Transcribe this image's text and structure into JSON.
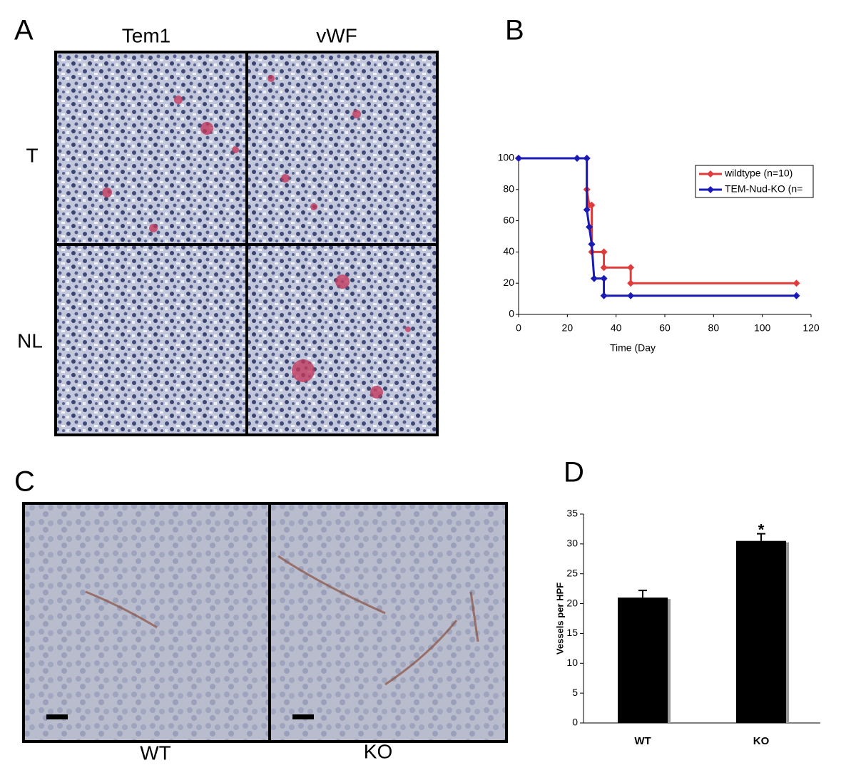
{
  "panels": {
    "a": "A",
    "b": "B",
    "c": "C",
    "d": "D",
    "a_columns": [
      "Tem1",
      "vWF"
    ],
    "a_rows": [
      "T",
      "NL"
    ],
    "c_columns": [
      "WT",
      "KO"
    ]
  },
  "chart_data": [
    {
      "type": "line",
      "xlabel": "Time (Day",
      "xlim": [
        0,
        120
      ],
      "xticks": [
        0,
        20,
        40,
        60,
        80,
        100,
        120
      ],
      "ylim": [
        0,
        100
      ],
      "yticks": [
        0,
        20,
        40,
        60,
        80,
        100
      ],
      "legend": "upper right",
      "series": [
        {
          "name": "wildtype (n=10)",
          "color": "#e03c3c",
          "x": [
            0,
            28,
            28,
            29,
            30,
            30,
            35,
            35,
            46,
            46,
            114
          ],
          "values": [
            100,
            100,
            80,
            70,
            70,
            40,
            40,
            30,
            30,
            20,
            20
          ]
        },
        {
          "name": "TEM-Nud-KO (n=",
          "color": "#1a1ab4",
          "x": [
            0,
            24,
            28,
            28,
            29,
            30,
            30,
            31,
            35,
            35,
            46,
            114
          ],
          "values": [
            100,
            100,
            100,
            67,
            56,
            45,
            45,
            23,
            23,
            12,
            12,
            12
          ]
        }
      ]
    },
    {
      "type": "bar",
      "ylabel": "Vessels per HPF",
      "categories": [
        "WT",
        "KO"
      ],
      "values": [
        21,
        30.5
      ],
      "errors": [
        1.2,
        1.2
      ],
      "annotations": [
        null,
        "*"
      ],
      "color": "#000000",
      "ylim": [
        0,
        35
      ],
      "yticks": [
        0,
        5,
        10,
        15,
        20,
        25,
        30,
        35
      ]
    }
  ]
}
